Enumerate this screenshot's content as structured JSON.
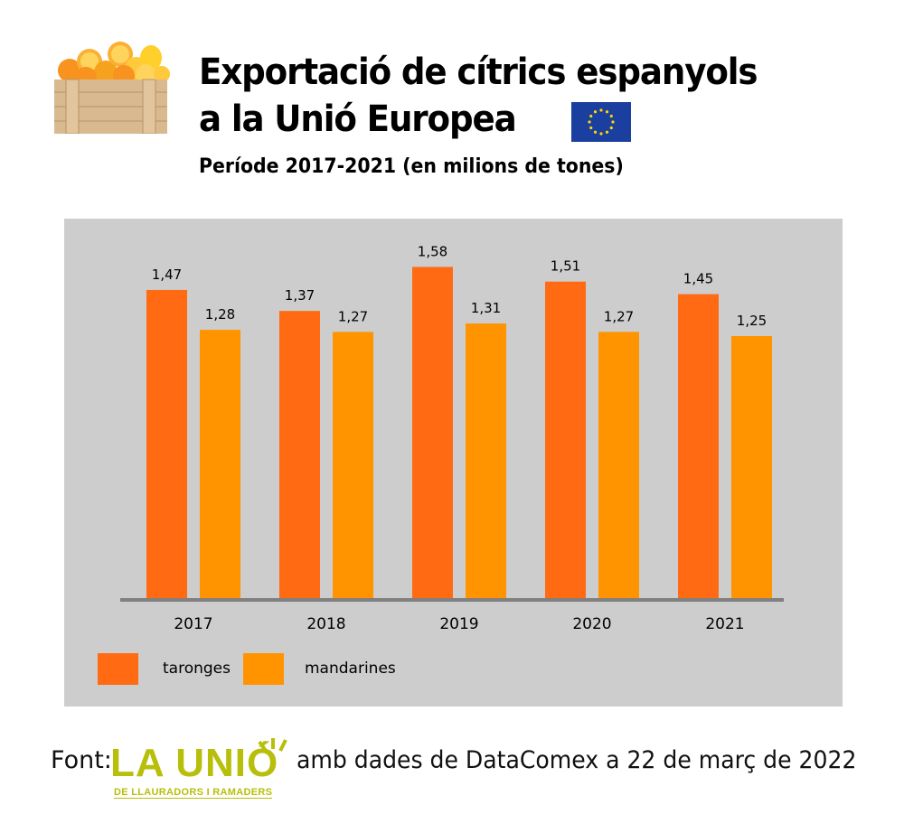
{
  "header": {
    "title_line1": "Exportació de cítrics espanyols",
    "title_line2": "a la Unió Europea",
    "subtitle": "Període 2017-2021 (en milions de tones)"
  },
  "footer": {
    "prefix": "Font:",
    "logo_text": "LA UNIÓ",
    "logo_subtext": "DE LLAURADORS I RAMADERS",
    "suffix": "amb dades de DataComex a 22 de març de 2022"
  },
  "colors": {
    "taronges": "#ff6a13",
    "mandarines": "#ff9400",
    "panel": "#cdcdcd",
    "axis": "#808080",
    "logo": "#b8bf0a",
    "eu_blue": "#1a3f9e",
    "eu_star": "#ffd500"
  },
  "chart_data": {
    "type": "bar",
    "title": "Exportació de cítrics espanyols a la Unió Europea",
    "subtitle": "Període 2017-2021 (en milions de tones)",
    "xlabel": "",
    "ylabel": "",
    "categories": [
      "2017",
      "2018",
      "2019",
      "2020",
      "2021"
    ],
    "series": [
      {
        "name": "taronges",
        "values": [
          1.47,
          1.37,
          1.58,
          1.51,
          1.45
        ],
        "labels": [
          "1,47",
          "1,37",
          "1,58",
          "1,51",
          "1,45"
        ]
      },
      {
        "name": "mandarines",
        "values": [
          1.28,
          1.27,
          1.31,
          1.27,
          1.25
        ],
        "labels": [
          "1,28",
          "1,27",
          "1,31",
          "1,27",
          "1,25"
        ]
      }
    ],
    "ylim": [
      0,
      1.7
    ],
    "grid": false,
    "legend": "bottom-left"
  }
}
